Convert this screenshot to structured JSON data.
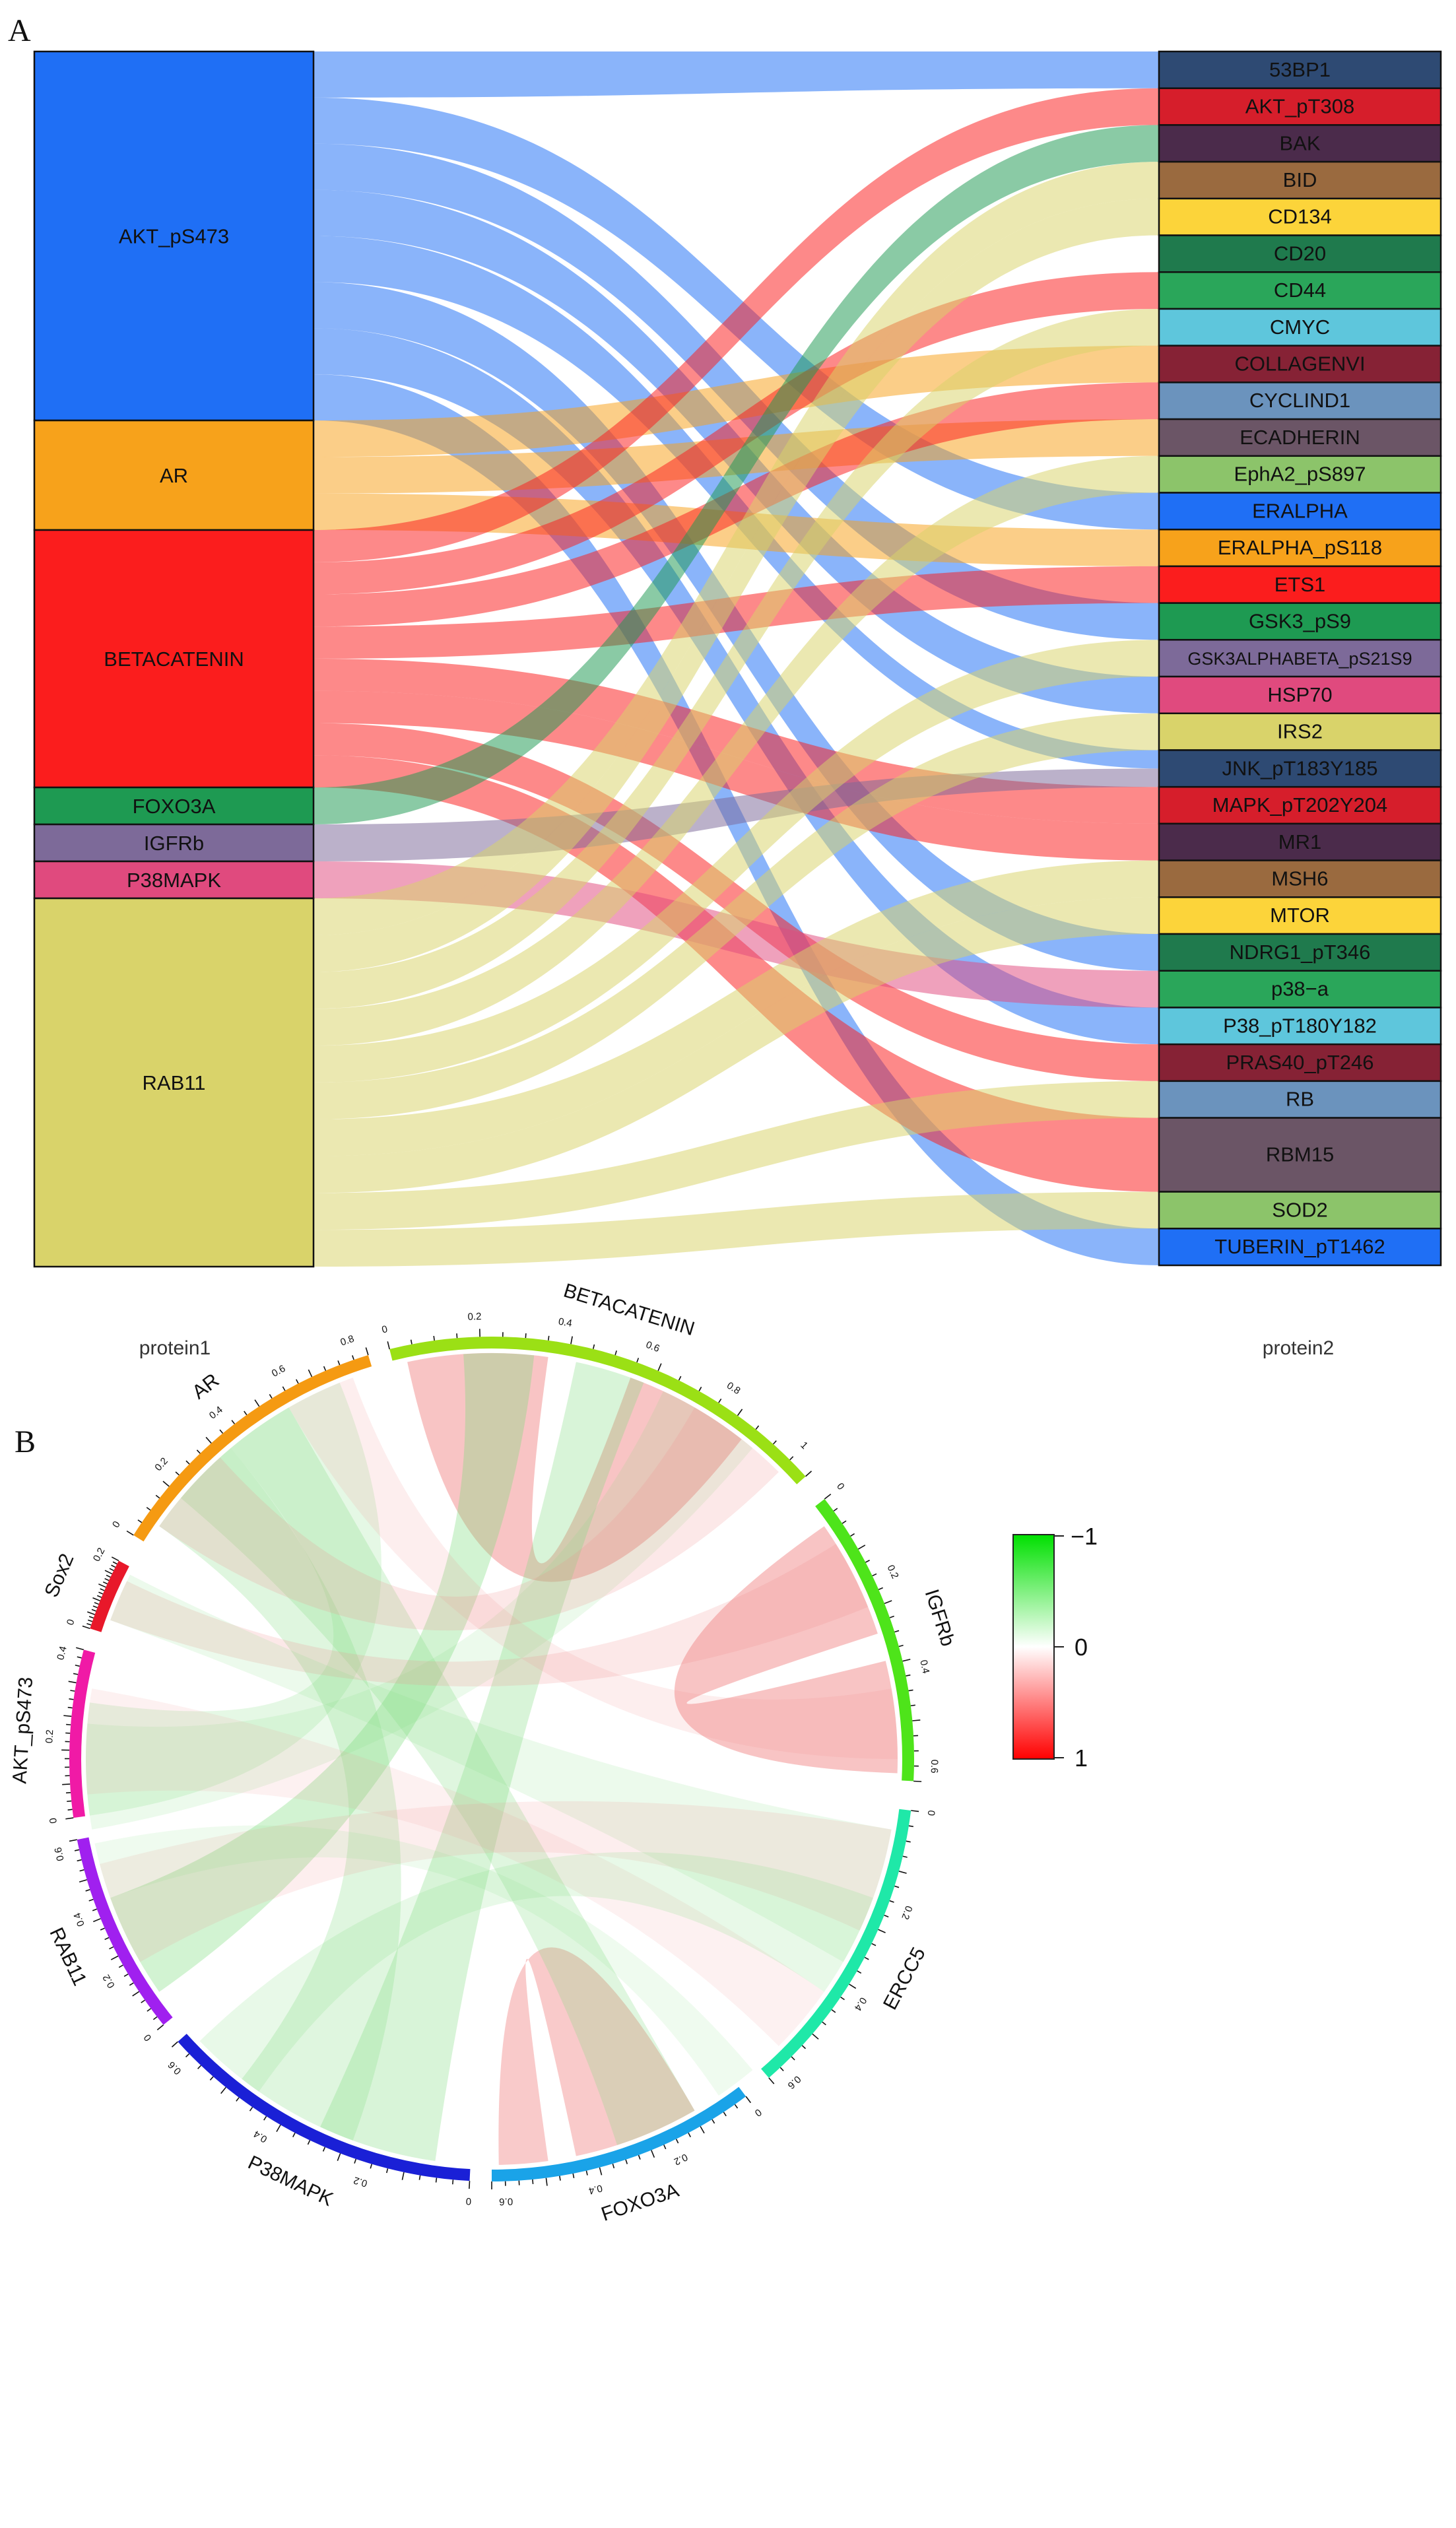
{
  "panel_a": {
    "letter": "A",
    "left_axis_label": "protein1",
    "right_axis_label": "protein2",
    "left_nodes": [
      {
        "label": "AKT_pS473",
        "color": "#1f6ff5"
      },
      {
        "label": "AR",
        "color": "#f7a21b"
      },
      {
        "label": "BETACATENIN",
        "color": "#fb1d1d"
      },
      {
        "label": "FOXO3A",
        "color": "#1e9a52"
      },
      {
        "label": "IGFRb",
        "color": "#7d6a99"
      },
      {
        "label": "P38MAPK",
        "color": "#e04a7e"
      },
      {
        "label": "RAB11",
        "color": "#d9d36a"
      }
    ],
    "right_nodes": [
      {
        "label": "53BP1",
        "color": "#2e4a73"
      },
      {
        "label": "AKT_pT308",
        "color": "#d61e2b"
      },
      {
        "label": "BAK",
        "color": "#4b2b4b"
      },
      {
        "label": "BID",
        "color": "#9a6a3f"
      },
      {
        "label": "CD134",
        "color": "#fcd43a"
      },
      {
        "label": "CD20",
        "color": "#1f7a4d"
      },
      {
        "label": "CD44",
        "color": "#2aa65a"
      },
      {
        "label": "CMYC",
        "color": "#5ec6dc"
      },
      {
        "label": "COLLAGENVI",
        "color": "#862235"
      },
      {
        "label": "CYCLIND1",
        "color": "#6b93bd"
      },
      {
        "label": "ECADHERIN",
        "color": "#6b5566"
      },
      {
        "label": "EphA2_pS897",
        "color": "#8cc46a"
      },
      {
        "label": "ERALPHA",
        "color": "#1f6ff5"
      },
      {
        "label": "ERALPHA_pS118",
        "color": "#f7a21b"
      },
      {
        "label": "ETS1",
        "color": "#fb1d1d"
      },
      {
        "label": "GSK3_pS9",
        "color": "#1e9a52"
      },
      {
        "label": "GSK3ALPHABETA_pS21S9",
        "color": "#7d6a99"
      },
      {
        "label": "HSP70",
        "color": "#e04a7e"
      },
      {
        "label": "IRS2",
        "color": "#d9d36a"
      },
      {
        "label": "JNK_pT183Y185",
        "color": "#2e4a73"
      },
      {
        "label": "MAPK_pT202Y204",
        "color": "#d61e2b"
      },
      {
        "label": "MR1",
        "color": "#4b2b4b"
      },
      {
        "label": "MSH6",
        "color": "#9a6a3f"
      },
      {
        "label": "MTOR",
        "color": "#fcd43a"
      },
      {
        "label": "NDRG1_pT346",
        "color": "#1f7a4d"
      },
      {
        "label": "p38−a",
        "color": "#2aa65a"
      },
      {
        "label": "P38_pT180Y182",
        "color": "#5ec6dc"
      },
      {
        "label": "PRAS40_pT246",
        "color": "#862235"
      },
      {
        "label": "RB",
        "color": "#6b93bd"
      },
      {
        "label": "RBM15",
        "color": "#6b5566"
      },
      {
        "label": "SOD2",
        "color": "#8cc46a"
      },
      {
        "label": "TUBERIN_pT1462",
        "color": "#1f6ff5"
      }
    ]
  },
  "panel_b": {
    "letter": "B",
    "segments": [
      {
        "label": "BETACATENIN",
        "color": "#9be015",
        "ticks": [
          "0",
          "0.2",
          "0.4",
          "0.6",
          "0.8",
          "1"
        ]
      },
      {
        "label": "IGFRb",
        "color": "#4ee41a",
        "ticks": [
          "0",
          "0.2",
          "0.4",
          "0.6"
        ]
      },
      {
        "label": "ERCC5",
        "color": "#1fe8a8",
        "ticks": [
          "0",
          "0.2",
          "0.4",
          "0.6"
        ]
      },
      {
        "label": "FOXO3A",
        "color": "#1aa3e8",
        "ticks": [
          "0",
          "0.2",
          "0.4",
          "0.6"
        ]
      },
      {
        "label": "P38MAPK",
        "color": "#1a20d6",
        "ticks": [
          "0",
          "0.2",
          "0.4",
          "0.6"
        ]
      },
      {
        "label": "RAB11",
        "color": "#a020ef",
        "ticks": [
          "0",
          "0.2",
          "0.4",
          "0.6"
        ]
      },
      {
        "label": "AKT_pS473",
        "color": "#f01aa6",
        "ticks": [
          "0",
          "0.2",
          "0.4"
        ]
      },
      {
        "label": "Sox2",
        "color": "#e8182a",
        "ticks": [
          "0",
          "0.2"
        ]
      },
      {
        "label": "AR",
        "color": "#f59a12",
        "ticks": [
          "0",
          "0.2",
          "0.4",
          "0.6",
          "0.8"
        ]
      }
    ],
    "legend": {
      "labels": [
        "−1",
        "0",
        "1"
      ],
      "color_top": "#00e000",
      "color_mid": "#ffffff",
      "color_bottom": "#ff0000"
    }
  }
}
